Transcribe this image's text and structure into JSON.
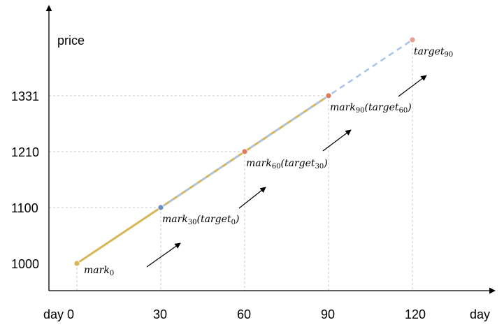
{
  "chart_data": {
    "type": "line",
    "xlabel": "day",
    "ylabel": "price",
    "x_ticks": [
      "day 0",
      "30",
      "60",
      "90",
      "120"
    ],
    "y_ticks": [
      "1000",
      "1100",
      "1210",
      "1331"
    ],
    "grid": "dashed guide lines to labelled points",
    "series": [
      {
        "role": "solid",
        "points": [
          [
            0,
            1000
          ],
          [
            90,
            1331
          ]
        ],
        "color": "#d6b656"
      },
      {
        "role": "dashed",
        "points": [
          [
            30,
            1100
          ],
          [
            60,
            1210
          ],
          [
            90,
            1331
          ],
          [
            120,
            1464
          ]
        ],
        "color": "#a9c4eb"
      }
    ],
    "markers": [
      {
        "x": 0,
        "y": 1000,
        "color": "#d6b656",
        "label": {
          "base": "mark",
          "sub": "0"
        }
      },
      {
        "x": 30,
        "y": 1100,
        "color": "#6c8ebf",
        "label": {
          "base": "mark",
          "sub": "30",
          "paren_base": "target",
          "paren_sub": "0"
        }
      },
      {
        "x": 60,
        "y": 1210,
        "color": "#e07b5b",
        "label": {
          "base": "mark",
          "sub": "60",
          "paren_base": "target",
          "paren_sub": "30"
        }
      },
      {
        "x": 90,
        "y": 1331,
        "color": "#e07b5b",
        "label": {
          "base": "mark",
          "sub": "90",
          "paren_base": "target",
          "paren_sub": "60"
        }
      },
      {
        "x": 120,
        "y": 1464,
        "color": "#e8a090",
        "label": {
          "base": "target",
          "sub": "90"
        }
      }
    ],
    "arrow_count": 4
  }
}
